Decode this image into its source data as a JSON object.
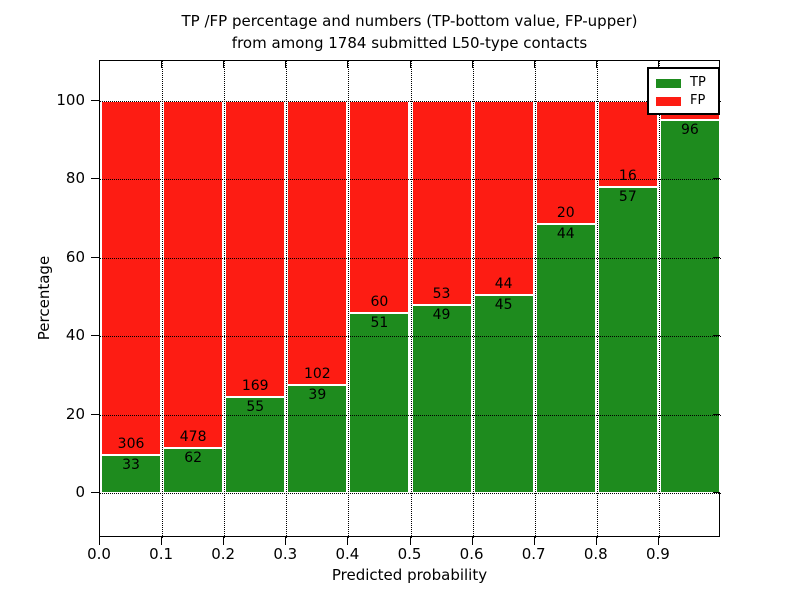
{
  "title": {
    "line1": "TP /FP percentage and numbers (TP-bottom value, FP-upper)",
    "line2": "from among 1784 submitted L50-type contacts"
  },
  "axes": {
    "x_label": "Predicted probability",
    "y_label": "Percentage",
    "x_tick_labels": [
      "0.0",
      "0.1",
      "0.2",
      "0.3",
      "0.4",
      "0.5",
      "0.6",
      "0.7",
      "0.8",
      "0.9"
    ],
    "y_tick_labels": [
      "0",
      "20",
      "40",
      "60",
      "80",
      "100"
    ],
    "y_tick_values": [
      0,
      20,
      40,
      60,
      80,
      100
    ]
  },
  "legend": {
    "entries": [
      {
        "label": "TP",
        "color": "#1e8b1e"
      },
      {
        "label": "FP",
        "color": "#fd1c13"
      }
    ]
  },
  "colors": {
    "tp_green": "#1e8b1e",
    "fp_red": "#fd1c13",
    "text": "#000000",
    "background": "#ffffff"
  },
  "bars": [
    {
      "bin_start": "0.0",
      "tp": 33,
      "fp": 306,
      "show_fp_label": true
    },
    {
      "bin_start": "0.1",
      "tp": 62,
      "fp": 478,
      "show_fp_label": true
    },
    {
      "bin_start": "0.2",
      "tp": 55,
      "fp": 169,
      "show_fp_label": true
    },
    {
      "bin_start": "0.3",
      "tp": 39,
      "fp": 102,
      "show_fp_label": true
    },
    {
      "bin_start": "0.4",
      "tp": 51,
      "fp": 60,
      "show_fp_label": true
    },
    {
      "bin_start": "0.5",
      "tp": 49,
      "fp": 53,
      "show_fp_label": true
    },
    {
      "bin_start": "0.6",
      "tp": 45,
      "fp": 44,
      "show_fp_label": true
    },
    {
      "bin_start": "0.7",
      "tp": 44,
      "fp": 20,
      "show_fp_label": true
    },
    {
      "bin_start": "0.8",
      "tp": 57,
      "fp": 16,
      "show_fp_label": true
    },
    {
      "bin_start": "0.9",
      "tp": 96,
      "fp": 5,
      "show_fp_label": false
    }
  ],
  "chart_data": {
    "type": "bar",
    "stacked": true,
    "normalized": "each bin stacked to 100%",
    "title": "TP /FP percentage and numbers (TP-bottom value, FP-upper) from among 1784 submitted L50-type contacts",
    "xlabel": "Predicted probability",
    "ylabel": "Percentage",
    "categories": [
      "0.0-0.1",
      "0.1-0.2",
      "0.2-0.3",
      "0.3-0.4",
      "0.4-0.5",
      "0.5-0.6",
      "0.6-0.7",
      "0.7-0.8",
      "0.8-0.9",
      "0.9-1.0"
    ],
    "series": [
      {
        "name": "TP",
        "color": "#1e8b1e",
        "values": [
          33,
          62,
          55,
          39,
          51,
          49,
          45,
          44,
          57,
          96
        ]
      },
      {
        "name": "FP",
        "color": "#fd1c13",
        "values": [
          306,
          478,
          169,
          102,
          60,
          53,
          44,
          20,
          16,
          5
        ]
      }
    ],
    "tp_percent_of_bin": [
      9.7,
      11.5,
      24.6,
      27.7,
      45.9,
      48.0,
      50.6,
      68.8,
      78.1,
      95.0
    ],
    "total_contacts": 1784,
    "ylim": [
      0,
      100
    ],
    "xlim": [
      0.0,
      1.0
    ],
    "grid": "dotted black, horizontal every 20, vertical every 0.1",
    "legend_position": "upper right",
    "note": "FP count label of last bin is hidden behind the legend box"
  }
}
